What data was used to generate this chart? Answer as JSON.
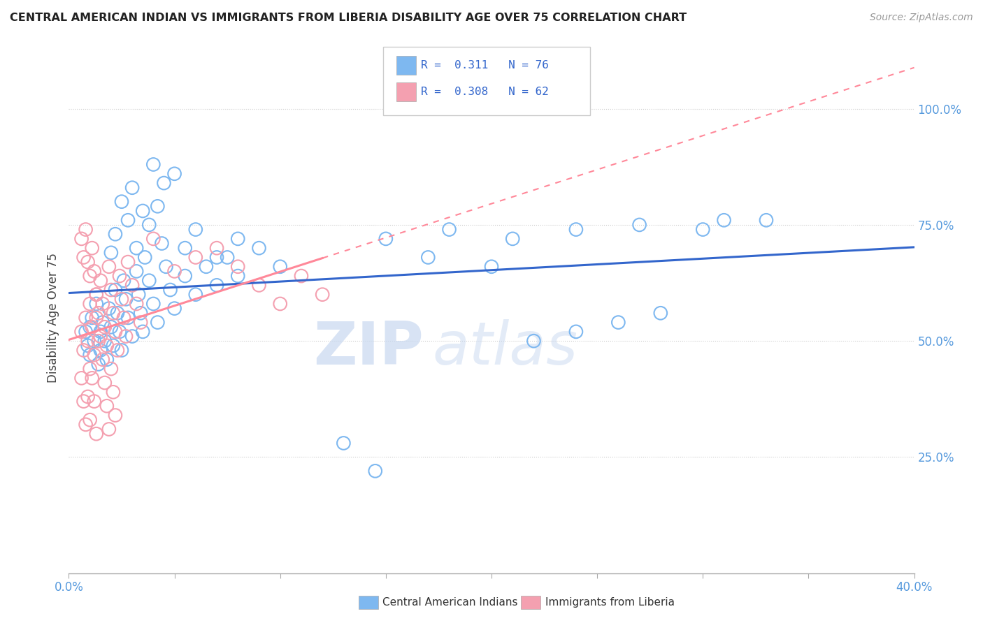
{
  "title": "CENTRAL AMERICAN INDIAN VS IMMIGRANTS FROM LIBERIA DISABILITY AGE OVER 75 CORRELATION CHART",
  "source": "Source: ZipAtlas.com",
  "ylabel": "Disability Age Over 75",
  "xlim": [
    0.0,
    0.4
  ],
  "ylim": [
    0.0,
    1.1
  ],
  "r_blue": 0.311,
  "n_blue": 76,
  "r_pink": 0.308,
  "n_pink": 62,
  "legend_labels": [
    "Central American Indians",
    "Immigrants from Liberia"
  ],
  "background_color": "#ffffff",
  "blue_color": "#7EB8F0",
  "pink_color": "#F4A0B0",
  "line_blue": "#3366CC",
  "line_pink": "#FF8899",
  "watermark_zip": "ZIP",
  "watermark_atlas": "atlas",
  "blue_scatter": [
    [
      0.008,
      0.52
    ],
    [
      0.009,
      0.49
    ],
    [
      0.01,
      0.53
    ],
    [
      0.01,
      0.47
    ],
    [
      0.011,
      0.55
    ],
    [
      0.012,
      0.5
    ],
    [
      0.013,
      0.58
    ],
    [
      0.014,
      0.45
    ],
    [
      0.015,
      0.52
    ],
    [
      0.015,
      0.48
    ],
    [
      0.016,
      0.54
    ],
    [
      0.017,
      0.5
    ],
    [
      0.018,
      0.46
    ],
    [
      0.019,
      0.57
    ],
    [
      0.02,
      0.53
    ],
    [
      0.021,
      0.49
    ],
    [
      0.022,
      0.61
    ],
    [
      0.023,
      0.56
    ],
    [
      0.024,
      0.52
    ],
    [
      0.025,
      0.48
    ],
    [
      0.026,
      0.63
    ],
    [
      0.027,
      0.59
    ],
    [
      0.028,
      0.55
    ],
    [
      0.03,
      0.51
    ],
    [
      0.032,
      0.65
    ],
    [
      0.033,
      0.6
    ],
    [
      0.034,
      0.56
    ],
    [
      0.035,
      0.52
    ],
    [
      0.036,
      0.68
    ],
    [
      0.038,
      0.63
    ],
    [
      0.04,
      0.58
    ],
    [
      0.042,
      0.54
    ],
    [
      0.044,
      0.71
    ],
    [
      0.046,
      0.66
    ],
    [
      0.048,
      0.61
    ],
    [
      0.05,
      0.57
    ],
    [
      0.055,
      0.64
    ],
    [
      0.06,
      0.6
    ],
    [
      0.065,
      0.66
    ],
    [
      0.07,
      0.62
    ],
    [
      0.075,
      0.68
    ],
    [
      0.08,
      0.64
    ],
    [
      0.09,
      0.7
    ],
    [
      0.1,
      0.66
    ],
    [
      0.03,
      0.83
    ],
    [
      0.04,
      0.88
    ],
    [
      0.045,
      0.84
    ],
    [
      0.035,
      0.78
    ],
    [
      0.025,
      0.8
    ],
    [
      0.05,
      0.86
    ],
    [
      0.038,
      0.75
    ],
    [
      0.042,
      0.79
    ],
    [
      0.02,
      0.69
    ],
    [
      0.022,
      0.73
    ],
    [
      0.028,
      0.76
    ],
    [
      0.032,
      0.7
    ],
    [
      0.055,
      0.7
    ],
    [
      0.06,
      0.74
    ],
    [
      0.07,
      0.68
    ],
    [
      0.08,
      0.72
    ],
    [
      0.15,
      0.72
    ],
    [
      0.18,
      0.74
    ],
    [
      0.21,
      0.72
    ],
    [
      0.24,
      0.74
    ],
    [
      0.27,
      0.75
    ],
    [
      0.3,
      0.74
    ],
    [
      0.31,
      0.76
    ],
    [
      0.33,
      0.76
    ],
    [
      0.13,
      0.28
    ],
    [
      0.145,
      0.22
    ],
    [
      0.17,
      0.68
    ],
    [
      0.2,
      0.66
    ],
    [
      0.22,
      0.5
    ],
    [
      0.24,
      0.52
    ],
    [
      0.26,
      0.54
    ],
    [
      0.28,
      0.56
    ]
  ],
  "pink_scatter": [
    [
      0.006,
      0.52
    ],
    [
      0.007,
      0.48
    ],
    [
      0.008,
      0.55
    ],
    [
      0.009,
      0.5
    ],
    [
      0.01,
      0.44
    ],
    [
      0.01,
      0.58
    ],
    [
      0.011,
      0.53
    ],
    [
      0.012,
      0.47
    ],
    [
      0.013,
      0.6
    ],
    [
      0.013,
      0.55
    ],
    [
      0.014,
      0.5
    ],
    [
      0.015,
      0.63
    ],
    [
      0.016,
      0.58
    ],
    [
      0.017,
      0.53
    ],
    [
      0.018,
      0.49
    ],
    [
      0.019,
      0.66
    ],
    [
      0.02,
      0.61
    ],
    [
      0.021,
      0.56
    ],
    [
      0.022,
      0.52
    ],
    [
      0.023,
      0.48
    ],
    [
      0.024,
      0.64
    ],
    [
      0.025,
      0.59
    ],
    [
      0.026,
      0.55
    ],
    [
      0.027,
      0.51
    ],
    [
      0.028,
      0.67
    ],
    [
      0.03,
      0.62
    ],
    [
      0.032,
      0.58
    ],
    [
      0.034,
      0.54
    ],
    [
      0.006,
      0.72
    ],
    [
      0.007,
      0.68
    ],
    [
      0.008,
      0.74
    ],
    [
      0.009,
      0.67
    ],
    [
      0.01,
      0.64
    ],
    [
      0.011,
      0.7
    ],
    [
      0.012,
      0.65
    ],
    [
      0.013,
      0.6
    ],
    [
      0.006,
      0.42
    ],
    [
      0.007,
      0.37
    ],
    [
      0.008,
      0.32
    ],
    [
      0.009,
      0.38
    ],
    [
      0.01,
      0.33
    ],
    [
      0.011,
      0.42
    ],
    [
      0.012,
      0.37
    ],
    [
      0.013,
      0.3
    ],
    [
      0.014,
      0.56
    ],
    [
      0.015,
      0.51
    ],
    [
      0.016,
      0.46
    ],
    [
      0.017,
      0.41
    ],
    [
      0.018,
      0.36
    ],
    [
      0.019,
      0.31
    ],
    [
      0.02,
      0.44
    ],
    [
      0.021,
      0.39
    ],
    [
      0.022,
      0.34
    ],
    [
      0.04,
      0.72
    ],
    [
      0.05,
      0.65
    ],
    [
      0.06,
      0.68
    ],
    [
      0.07,
      0.7
    ],
    [
      0.08,
      0.66
    ],
    [
      0.09,
      0.62
    ],
    [
      0.1,
      0.58
    ],
    [
      0.11,
      0.64
    ],
    [
      0.12,
      0.6
    ]
  ]
}
